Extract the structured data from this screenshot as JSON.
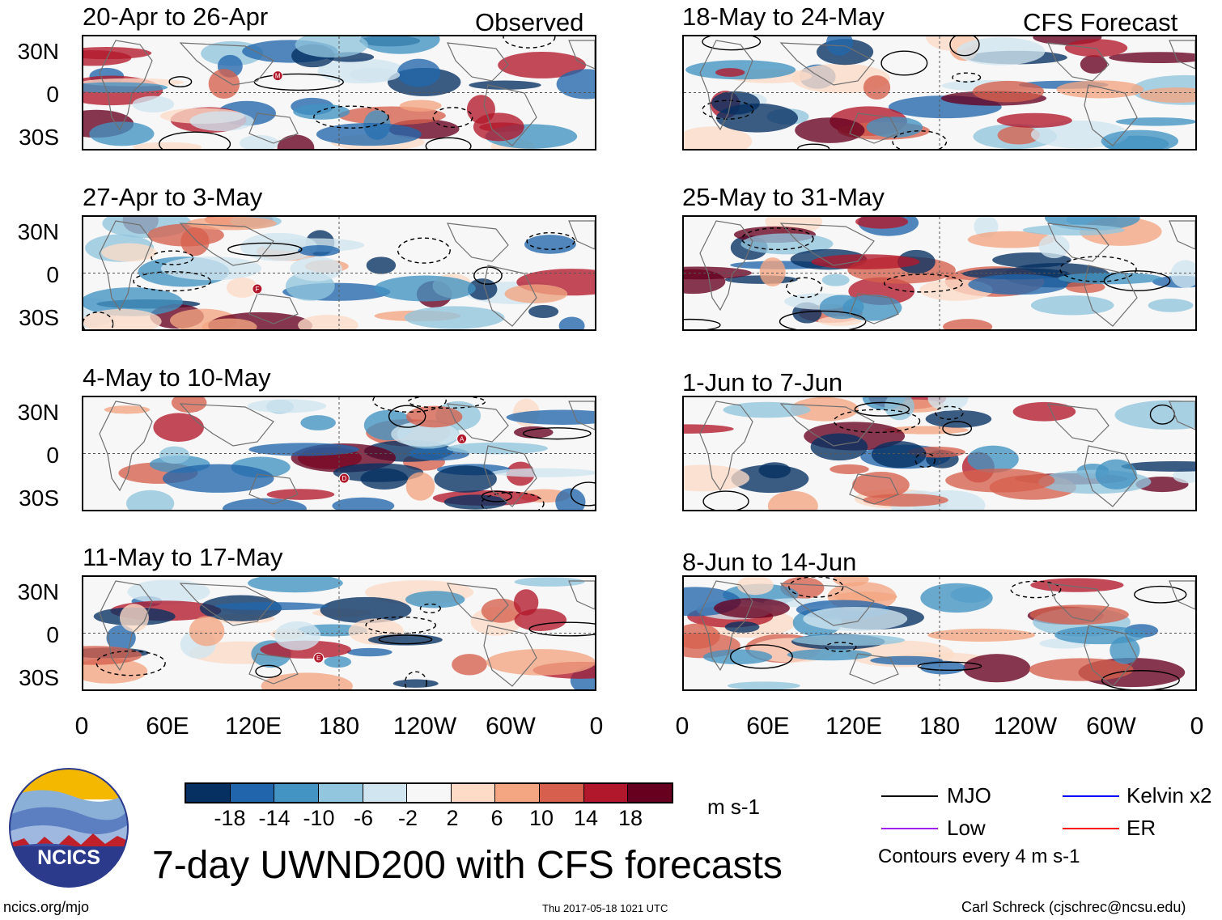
{
  "labels": {
    "observed": "Observed",
    "forecast": "CFS Forecast",
    "main_title": "7-day UWND200 with CFS forecasts",
    "units": "m s-1",
    "url": "ncics.org/mjo",
    "timestamp": "Thu 2017-05-18 1021 UTC",
    "author": "Carl Schreck (cjschrec@ncsu.edu)",
    "contours_note": "Contours every 4 m s-1",
    "logo_text": "NCICS"
  },
  "lat_ticks": [
    "30N",
    "0",
    "30S"
  ],
  "lon_ticks": [
    "0",
    "60E",
    "120E",
    "180",
    "120W",
    "60W",
    "0"
  ],
  "observed_panels": [
    {
      "title": "20-Apr to 26-Apr",
      "markers": [
        "M"
      ]
    },
    {
      "title": "27-Apr to 3-May",
      "markers": [
        "F"
      ]
    },
    {
      "title": "4-May to 10-May",
      "markers": [
        "A",
        "D"
      ]
    },
    {
      "title": "11-May to 17-May",
      "markers": [
        "E"
      ]
    }
  ],
  "forecast_panels": [
    {
      "title": "18-May to 24-May"
    },
    {
      "title": "25-May to 31-May"
    },
    {
      "title": "1-Jun to 7-Jun"
    },
    {
      "title": "8-Jun to 14-Jun"
    }
  ],
  "colorbar": {
    "colors": [
      "#053061",
      "#2166ac",
      "#4393c3",
      "#92c5de",
      "#d1e5f0",
      "#f7f7f7",
      "#fddbc7",
      "#f4a582",
      "#d6604d",
      "#b2182b",
      "#67001f"
    ],
    "ticks": [
      "-18",
      "-14",
      "-10",
      "-6",
      "-2",
      "2",
      "6",
      "10",
      "14",
      "18"
    ]
  },
  "legend": [
    {
      "label": "MJO",
      "color": "#000000"
    },
    {
      "label": "Kelvin x2",
      "color": "#0000ff"
    },
    {
      "label": "Low",
      "color": "#a020f0"
    },
    {
      "label": "ER",
      "color": "#ff0000"
    }
  ]
}
